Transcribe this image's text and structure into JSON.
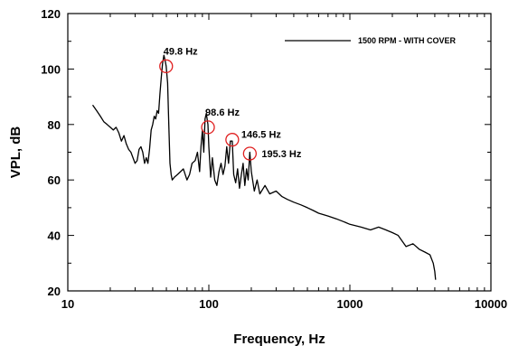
{
  "chart_data": {
    "type": "line",
    "title": "",
    "xlabel": "Frequency, Hz",
    "ylabel": "VPL, dB",
    "x_scale": "log",
    "xlim": [
      10,
      10000
    ],
    "ylim": [
      20,
      120
    ],
    "x_ticks": [
      10,
      100,
      1000,
      10000
    ],
    "x_tick_labels": [
      "10",
      "100",
      "1000",
      "10000"
    ],
    "y_ticks": [
      20,
      40,
      60,
      80,
      100,
      120
    ],
    "y_tick_labels": [
      "20",
      "40",
      "60",
      "80",
      "100",
      "120"
    ],
    "grid": false,
    "legend_position": "top-right",
    "line_color": "#000000",
    "marker_color": "#e02020",
    "series": [
      {
        "name": "1500 RPM - WITH COVER",
        "x": [
          15,
          16,
          17,
          18,
          19,
          20,
          21,
          22,
          23,
          24,
          25,
          26,
          27,
          28,
          29,
          30,
          31,
          32,
          33,
          34,
          35,
          36,
          37,
          38,
          39,
          40,
          41,
          42,
          43,
          44,
          45,
          46,
          47,
          48,
          49,
          49.8,
          51,
          52,
          53,
          54,
          55,
          57,
          60,
          63,
          66,
          70,
          73,
          76,
          80,
          83,
          86,
          88,
          90,
          92,
          94,
          96,
          98.6,
          100,
          103,
          106,
          110,
          114,
          118,
          122,
          126,
          130,
          134,
          138,
          142,
          146.5,
          150,
          155,
          160,
          165,
          170,
          175,
          180,
          185,
          190,
          195.3,
          200,
          210,
          220,
          230,
          250,
          270,
          300,
          330,
          360,
          400,
          450,
          500,
          550,
          600,
          700,
          800,
          900,
          1000,
          1200,
          1400,
          1600,
          1800,
          2000,
          2200,
          2500,
          2800,
          3100,
          3400,
          3700,
          3900,
          4000,
          4050
        ],
        "y": [
          87,
          85,
          83,
          81,
          80,
          79,
          78,
          79,
          77,
          74,
          76,
          73,
          71,
          70,
          68,
          66,
          67,
          71,
          72,
          70,
          66,
          68,
          66,
          71,
          78,
          80,
          83,
          82,
          85,
          84,
          91,
          97,
          102,
          105,
          103,
          101,
          95,
          80,
          66,
          62,
          60,
          61,
          62,
          63,
          64,
          60,
          62,
          66,
          67,
          70,
          63,
          72,
          78,
          70,
          82,
          84,
          80,
          72,
          61,
          68,
          60,
          58,
          63,
          66,
          62,
          65,
          72,
          66,
          74,
          74,
          62,
          59,
          64,
          57,
          62,
          66,
          58,
          64,
          60,
          70,
          63,
          56,
          60,
          55,
          58,
          55,
          56,
          54,
          53,
          52,
          51,
          50,
          49,
          48,
          47,
          46,
          45,
          44,
          43,
          42,
          43,
          42,
          41,
          40,
          36,
          37,
          35,
          34,
          33,
          30,
          27,
          24
        ]
      }
    ],
    "annotations": [
      {
        "x": 49.8,
        "y": 101,
        "label": "49.8 Hz"
      },
      {
        "x": 98.6,
        "y": 79,
        "label": "98.6 Hz"
      },
      {
        "x": 146.5,
        "y": 74.5,
        "label": "146.5 Hz"
      },
      {
        "x": 195.3,
        "y": 69.5,
        "label": "195.3 Hz"
      }
    ]
  }
}
